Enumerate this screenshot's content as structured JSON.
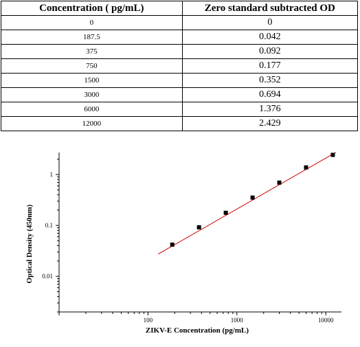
{
  "table": {
    "headers": [
      "Concentration ( pg/mL)",
      "Zero standard subtracted OD"
    ],
    "rows": [
      [
        "0",
        "0"
      ],
      [
        "187.5",
        "0.042"
      ],
      [
        "375",
        "0.092"
      ],
      [
        "750",
        "0.177"
      ],
      [
        "1500",
        "0.352"
      ],
      [
        "3000",
        "0.694"
      ],
      [
        "6000",
        "1.376"
      ],
      [
        "12000",
        "2.429"
      ]
    ]
  },
  "chart_data": {
    "type": "scatter",
    "xlabel": "ZIKV-E  Concentration (pg/mL)",
    "ylabel": "Optical Density (450nm)",
    "xscale": "log",
    "yscale": "log",
    "xlim": [
      10,
      15000
    ],
    "ylim": [
      0.002,
      2.7
    ],
    "xticks": [
      100,
      1000,
      10000
    ],
    "xtick_labels": [
      "100",
      "1000",
      "10000"
    ],
    "yticks": [
      0.01,
      0.1,
      1
    ],
    "ytick_labels": [
      "0.01",
      "0.1",
      "1"
    ],
    "grid": false,
    "series": [
      {
        "x": [
          187.5,
          375,
          750,
          1500,
          3000,
          6000,
          12000
        ],
        "y": [
          0.042,
          0.092,
          0.177,
          0.352,
          0.694,
          1.376,
          2.429
        ],
        "color": "#000000"
      }
    ],
    "fit_line": {
      "color": "#cc0000",
      "x_range": [
        130,
        13000
      ],
      "slope": 1.0,
      "reference_point": [
        1000,
        0.21
      ]
    }
  }
}
